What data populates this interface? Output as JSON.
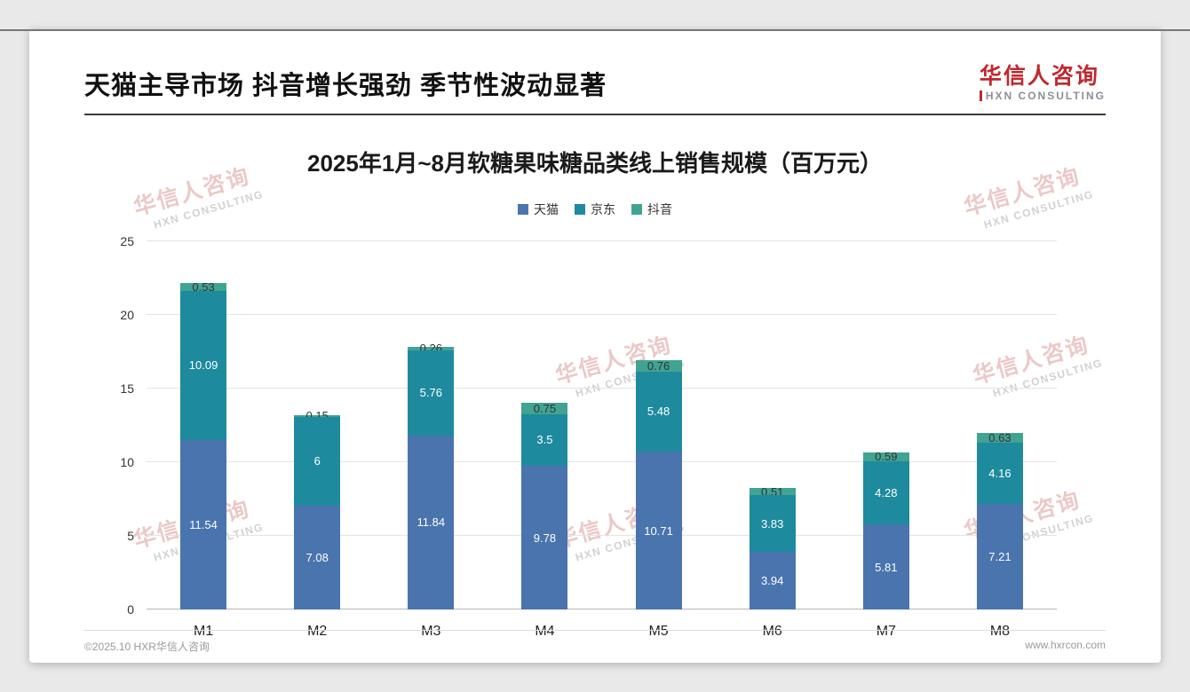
{
  "page": {
    "header": {
      "title": "天猫主导市场 抖音增长强劲 季节性波动显著",
      "logo_cn": "华信人咨询",
      "logo_en": "HXN CONSULTING",
      "brand_color": "#c0282e"
    },
    "watermark": {
      "cn": "华信人咨询",
      "en": "HXN CONSULTING"
    },
    "footer": {
      "copyright": "©2025.10 HXR华信人咨询",
      "website": "www.hxrcon.com"
    }
  },
  "chart_data": {
    "type": "bar",
    "stacked": true,
    "title": "2025年1月~8月软糖果味糖品类线上销售规模（百万元）",
    "categories": [
      "M1",
      "M2",
      "M3",
      "M4",
      "M5",
      "M6",
      "M7",
      "M8"
    ],
    "series": [
      {
        "name": "天猫",
        "color": "#4a74ae",
        "label_color": "#ffffff",
        "values": [
          11.54,
          7.08,
          11.84,
          9.78,
          10.71,
          3.94,
          5.81,
          7.21
        ]
      },
      {
        "name": "京东",
        "color": "#1e8a9e",
        "label_color": "#ffffff",
        "values": [
          10.09,
          6,
          5.76,
          3.5,
          5.48,
          3.83,
          4.28,
          4.16
        ]
      },
      {
        "name": "抖音",
        "color": "#41a391",
        "label_color": "#333333",
        "values": [
          0.53,
          0.15,
          0.26,
          0.75,
          0.76,
          0.51,
          0.59,
          0.63
        ]
      }
    ],
    "ylim": [
      0,
      25
    ],
    "yticks": [
      0,
      5,
      10,
      15,
      20,
      25
    ],
    "legend_position": "top-center",
    "grid": true
  }
}
